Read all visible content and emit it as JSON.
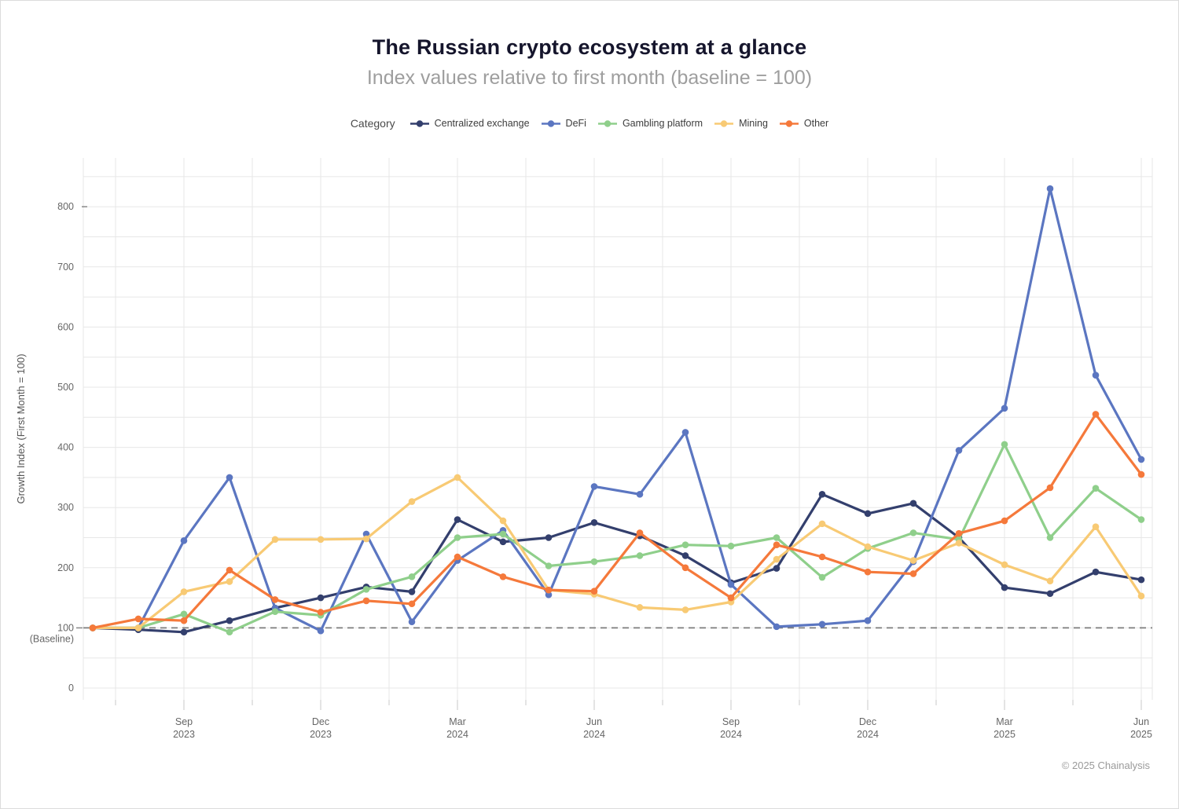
{
  "page": {
    "title": "The Russian crypto ecosystem at a glance",
    "subtitle": "Index values relative to first month (baseline = 100)",
    "footer": "© 2025 Chainalysis"
  },
  "legend": {
    "label": "Category",
    "position": "top",
    "items": [
      {
        "label": "Centralized exchange",
        "color": "#333f6d"
      },
      {
        "label": "DeFi",
        "color": "#5b76c1"
      },
      {
        "label": "Gambling platform",
        "color": "#8fcf8b"
      },
      {
        "label": "Mining",
        "color": "#f8ca74"
      },
      {
        "label": "Other",
        "color": "#f5793b"
      }
    ]
  },
  "chart_data": {
    "type": "line",
    "title": "The Russian crypto ecosystem at a glance",
    "subtitle": "Index values relative to first month (baseline = 100)",
    "xlabel": "",
    "ylabel": "Growth Index (First Month = 100)",
    "ylim": [
      0,
      850
    ],
    "y_ticks": [
      0,
      100,
      200,
      300,
      400,
      500,
      600,
      700,
      800
    ],
    "grid": true,
    "grid_step_y": 50,
    "legend_position": "top",
    "baseline": {
      "value": 100,
      "label_value": "100",
      "label_caption": "(Baseline)",
      "style": "dashed"
    },
    "x": [
      "Jul 2023",
      "Aug 2023",
      "Sep 2023",
      "Oct 2023",
      "Nov 2023",
      "Dec 2023",
      "Jan 2024",
      "Feb 2024",
      "Mar 2024",
      "Apr 2024",
      "May 2024",
      "Jun 2024",
      "Jul 2024",
      "Aug 2024",
      "Sep 2024",
      "Oct 2024",
      "Nov 2024",
      "Dec 2024",
      "Jan 2025",
      "Feb 2025",
      "Mar 2025",
      "Apr 2025",
      "May 2025",
      "Jun 2025"
    ],
    "x_tick_labels": [
      {
        "month": "Sep",
        "year": "2023",
        "index": 2
      },
      {
        "month": "Dec",
        "year": "2023",
        "index": 5
      },
      {
        "month": "Mar",
        "year": "2024",
        "index": 8
      },
      {
        "month": "Jun",
        "year": "2024",
        "index": 11
      },
      {
        "month": "Sep",
        "year": "2024",
        "index": 14
      },
      {
        "month": "Dec",
        "year": "2024",
        "index": 17
      },
      {
        "month": "Mar",
        "year": "2025",
        "index": 20
      },
      {
        "month": "Jun",
        "year": "2025",
        "index": 23
      }
    ],
    "series": [
      {
        "name": "Centralized exchange",
        "color": "#333f6d",
        "values": [
          100,
          97,
          93,
          112,
          133,
          150,
          168,
          160,
          280,
          243,
          250,
          275,
          253,
          220,
          175,
          199,
          322,
          290,
          307,
          250,
          167,
          157,
          193,
          180
        ]
      },
      {
        "name": "DeFi",
        "color": "#5b76c1",
        "values": [
          100,
          100,
          245,
          350,
          133,
          95,
          256,
          110,
          212,
          262,
          155,
          335,
          322,
          425,
          172,
          102,
          106,
          112,
          210,
          395,
          465,
          830,
          520,
          380
        ]
      },
      {
        "name": "Gambling platform",
        "color": "#8fcf8b",
        "values": [
          100,
          100,
          123,
          93,
          127,
          121,
          164,
          185,
          250,
          256,
          203,
          210,
          220,
          238,
          236,
          250,
          184,
          232,
          258,
          247,
          405,
          250,
          332,
          280
        ]
      },
      {
        "name": "Mining",
        "color": "#f8ca74",
        "values": [
          100,
          100,
          160,
          177,
          247,
          247,
          248,
          310,
          350,
          278,
          163,
          156,
          134,
          130,
          143,
          214,
          273,
          235,
          212,
          241,
          205,
          178,
          268,
          153
        ]
      },
      {
        "name": "Other",
        "color": "#f5793b",
        "values": [
          100,
          115,
          112,
          196,
          147,
          126,
          145,
          140,
          218,
          185,
          163,
          161,
          258,
          200,
          150,
          238,
          218,
          193,
          190,
          257,
          278,
          333,
          455,
          355
        ]
      }
    ]
  },
  "colors": {
    "grid": "#e7e7e7",
    "tick": "#c9c9c9",
    "baseline_dash": "#7d7d7d",
    "axis_text": "#666666"
  }
}
